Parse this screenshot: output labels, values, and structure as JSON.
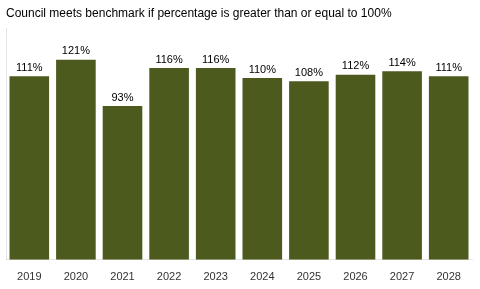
{
  "chart_data": {
    "type": "bar",
    "title": "Council meets benchmark if percentage is greater than or equal to 100%",
    "categories": [
      "2019",
      "2020",
      "2021",
      "2022",
      "2023",
      "2024",
      "2025",
      "2026",
      "2027",
      "2028"
    ],
    "values": [
      111,
      121,
      93,
      116,
      116,
      110,
      108,
      112,
      114,
      111
    ],
    "value_labels": [
      "111%",
      "121%",
      "93%",
      "116%",
      "116%",
      "110%",
      "108%",
      "112%",
      "114%",
      "111%"
    ],
    "color": "#4d5a1e",
    "ylim": [
      0,
      140
    ],
    "grid": false,
    "data_labels": true,
    "tick_labels": "x"
  }
}
